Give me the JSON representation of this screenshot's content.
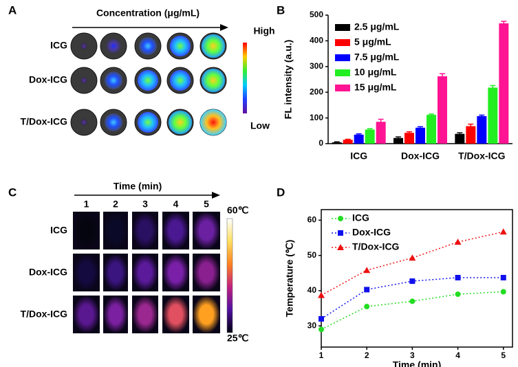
{
  "panel_a": {
    "label": "A",
    "axis_label": "Concentration (μg/mL)",
    "rows": [
      "ICG",
      "Dox-ICG",
      "T/Dox-ICG"
    ],
    "scale_high": "High",
    "scale_low": "Low"
  },
  "panel_c": {
    "label": "C",
    "axis_label": "Time (min)",
    "columns": [
      "1",
      "2",
      "3",
      "4",
      "5"
    ],
    "rows": [
      "ICG",
      "Dox-ICG",
      "T/Dox-ICG"
    ],
    "scale_high": "60℃",
    "scale_low": "25℃"
  },
  "chart_data": [
    {
      "label": "B",
      "type": "bar",
      "y_label": "FL intensity (a.u.)",
      "categories": [
        "ICG",
        "Dox-ICG",
        "T/Dox-ICG"
      ],
      "series": [
        {
          "name": "2.5 μg/mL",
          "color": "#000000",
          "values": [
            5,
            22,
            38
          ],
          "errors": [
            2,
            4,
            4
          ]
        },
        {
          "name": "5 μg/mL",
          "color": "#ff0000",
          "values": [
            15,
            42,
            68
          ],
          "errors": [
            2,
            4,
            8
          ]
        },
        {
          "name": "7.5 μg/mL",
          "color": "#0000ff",
          "values": [
            35,
            62,
            107
          ],
          "errors": [
            3,
            4,
            4
          ]
        },
        {
          "name": "10 μg/mL",
          "color": "#22ee22",
          "values": [
            55,
            112,
            218
          ],
          "errors": [
            3,
            3,
            8
          ]
        },
        {
          "name": "15 μg/mL",
          "color": "#ff1493",
          "values": [
            85,
            262,
            468
          ],
          "errors": [
            10,
            10,
            8
          ]
        }
      ],
      "ylim": [
        0,
        500
      ],
      "yticks": [
        0,
        100,
        200,
        300,
        400,
        500
      ]
    },
    {
      "label": "D",
      "type": "line",
      "x_label": "Time (min)",
      "y_label": "Temperature (℃)",
      "x": [
        1,
        2,
        3,
        4,
        5
      ],
      "series": [
        {
          "name": "ICG",
          "color": "#22dd22",
          "marker": "circle",
          "values": [
            29,
            35.5,
            37,
            39,
            39.7
          ]
        },
        {
          "name": "Dox-ICG",
          "color": "#1010ee",
          "marker": "square",
          "values": [
            32,
            40.3,
            42.7,
            43.7,
            43.7
          ]
        },
        {
          "name": "T/Dox-ICG",
          "color": "#ee1111",
          "marker": "triangle",
          "values": [
            38.7,
            45.8,
            49.3,
            53.8,
            56.7
          ]
        }
      ],
      "xlim": [
        1,
        5.2
      ],
      "xticks": [
        1,
        2,
        3,
        4,
        5
      ],
      "ylim": [
        24,
        63
      ],
      "yticks": [
        30,
        40,
        50,
        60
      ]
    }
  ]
}
